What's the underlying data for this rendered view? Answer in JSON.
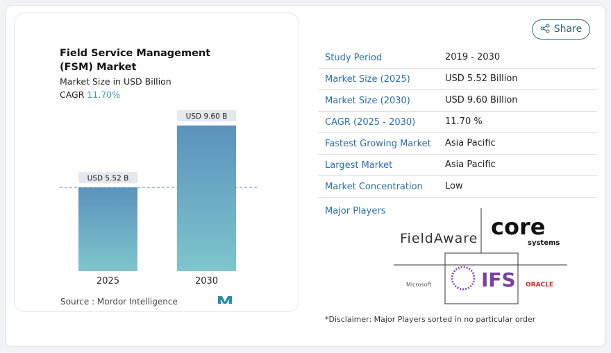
{
  "chart_data": {
    "type": "bar",
    "title": "Field Service Management (FSM) Market",
    "subtitle": "Market Size in USD Billion",
    "cagr_label": "CAGR",
    "cagr_value": "11.70%",
    "categories": [
      "2025",
      "2030"
    ],
    "values": [
      5.52,
      9.6
    ],
    "value_labels": [
      "USD 5.52 B",
      "USD 9.60 B"
    ],
    "color_top": "#5a92bd",
    "color_bottom": "#7ec6cc",
    "source_label": "Source :",
    "source": "Mordor Intelligence"
  },
  "share": "Share",
  "table": {
    "rows": [
      [
        "Study Period",
        "2019 - 2030"
      ],
      [
        "Market Size (2025)",
        "USD 5.52 Billion"
      ],
      [
        "Market Size (2030)",
        "USD 9.60 Billion"
      ],
      [
        "CAGR (2025 - 2030)",
        "11.70 %"
      ],
      [
        "Fastest Growing Market",
        "Asia Pacific"
      ],
      [
        "Largest Market",
        "Asia Pacific"
      ],
      [
        "Market Concentration",
        "Low"
      ]
    ]
  },
  "players": {
    "title": "Major Players",
    "logos": [
      "FieldAware",
      "core",
      "systems",
      "Microsoft",
      "IFS",
      "ORACLE"
    ]
  },
  "disclaimer": "*Disclaimer: Major Players sorted in no particular order"
}
